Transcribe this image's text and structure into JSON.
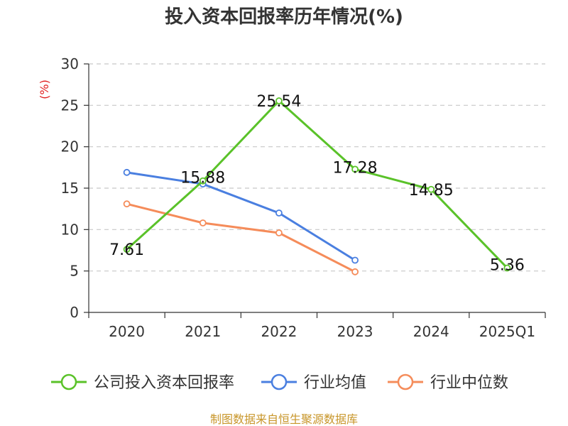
{
  "chart_data": {
    "type": "line",
    "title": "投入资本回报率历年情况(%)",
    "ylabel": "(%)",
    "xlabel": "",
    "categories": [
      "2020",
      "2021",
      "2022",
      "2023",
      "2024",
      "2025Q1"
    ],
    "ylim": [
      0,
      30
    ],
    "yticks": [
      0,
      5,
      10,
      15,
      20,
      25,
      30
    ],
    "grid": true,
    "legend_position": "bottom",
    "series": [
      {
        "name": "公司投入资本回报率",
        "color": "#5ac229",
        "values": [
          7.61,
          15.88,
          25.54,
          17.28,
          14.85,
          5.36
        ],
        "labels": [
          "7.61",
          "15.88",
          "25.54",
          "17.28",
          "14.85",
          "5.36"
        ],
        "show_labels": true
      },
      {
        "name": "行业均值",
        "color": "#4a7fe0",
        "values": [
          16.9,
          15.5,
          12.0,
          6.3,
          null,
          null
        ],
        "show_labels": false
      },
      {
        "name": "行业中位数",
        "color": "#f58c5a",
        "values": [
          13.1,
          10.8,
          9.6,
          4.9,
          null,
          null
        ],
        "show_labels": false
      }
    ]
  },
  "source": "制图数据来自恒生聚源数据库"
}
